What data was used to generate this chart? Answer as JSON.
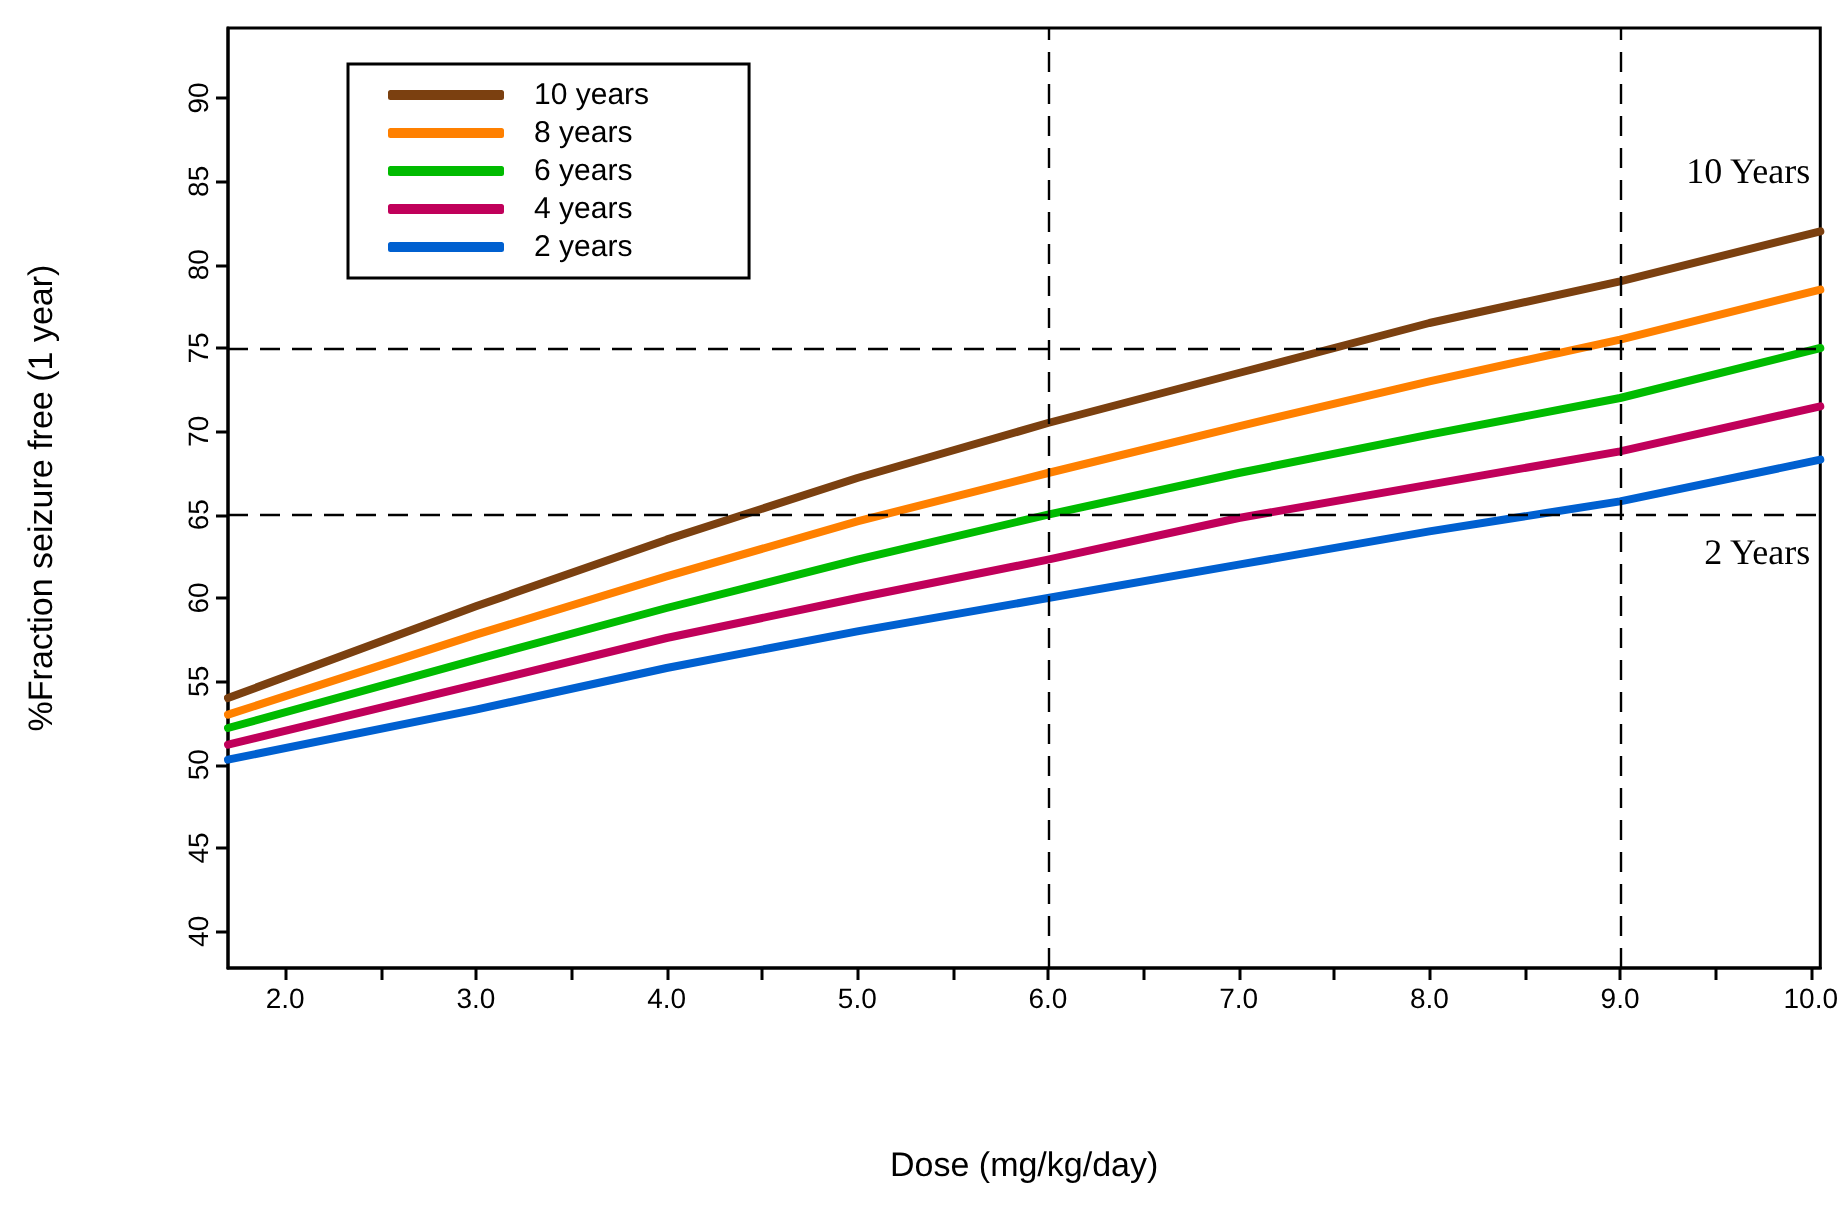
{
  "chart_data": {
    "type": "line",
    "xlabel": "Dose (mg/kg/day)",
    "ylabel": "%Fraction seizure free (1 year)",
    "x": [
      1.7,
      3.0,
      4.0,
      5.0,
      6.0,
      7.0,
      8.0,
      9.0,
      10.05
    ],
    "series": [
      {
        "name": "10 years",
        "color": "#7b4010",
        "values": [
          54.0,
          59.5,
          63.5,
          67.2,
          70.5,
          73.5,
          76.5,
          79.0,
          82.0
        ]
      },
      {
        "name": "8 years",
        "color": "#ff8000",
        "values": [
          53.0,
          57.8,
          61.3,
          64.6,
          67.5,
          70.3,
          73.0,
          75.5,
          78.5
        ]
      },
      {
        "name": "6 years",
        "color": "#00bb00",
        "values": [
          52.2,
          56.3,
          59.4,
          62.3,
          65.0,
          67.5,
          69.8,
          72.0,
          75.0
        ]
      },
      {
        "name": "4 years",
        "color": "#c0005a",
        "values": [
          51.2,
          54.8,
          57.6,
          60.0,
          62.3,
          64.8,
          66.8,
          68.8,
          71.5
        ]
      },
      {
        "name": "2 years",
        "color": "#0060d0",
        "values": [
          50.3,
          53.3,
          55.8,
          58.0,
          60.0,
          62.0,
          64.0,
          65.8,
          68.3
        ]
      }
    ],
    "xlim": [
      1.7,
      10.05
    ],
    "xticks": [
      {
        "value": 2,
        "label": "2.0"
      },
      {
        "value": 2.5,
        "label": null
      },
      {
        "value": 3,
        "label": "3.0"
      },
      {
        "value": 3.5,
        "label": null
      },
      {
        "value": 4,
        "label": "4.0"
      },
      {
        "value": 4.5,
        "label": null
      },
      {
        "value": 5,
        "label": "5.0"
      },
      {
        "value": 5.5,
        "label": null
      },
      {
        "value": 6,
        "label": "6.0"
      },
      {
        "value": 6.5,
        "label": null
      },
      {
        "value": 7,
        "label": "7.0"
      },
      {
        "value": 7.5,
        "label": null
      },
      {
        "value": 8,
        "label": "8.0"
      },
      {
        "value": 8.5,
        "label": null
      },
      {
        "value": 9,
        "label": "9.0"
      },
      {
        "value": 9.5,
        "label": null
      },
      {
        "value": 10,
        "label": "10.0"
      }
    ],
    "ylim": [
      37.8,
      94.2
    ],
    "yticks": [
      40,
      45,
      50,
      55,
      60,
      65,
      70,
      75,
      80,
      85,
      90
    ],
    "ref_lines": [
      {
        "axis": "y",
        "value": 75,
        "line_style": "dashed",
        "color": "#000000"
      },
      {
        "axis": "y",
        "value": 65,
        "line_style": "dashed",
        "color": "#000000"
      },
      {
        "axis": "x",
        "value": 6,
        "line_style": "dashed",
        "color": "#000000"
      },
      {
        "axis": "x",
        "value": 9,
        "line_style": "dashed",
        "color": "#000000"
      }
    ],
    "annotations": [
      "10 Years",
      "2 Years"
    ],
    "legend": "top left",
    "grid": false,
    "marker": "none",
    "line_style": "solid"
  }
}
